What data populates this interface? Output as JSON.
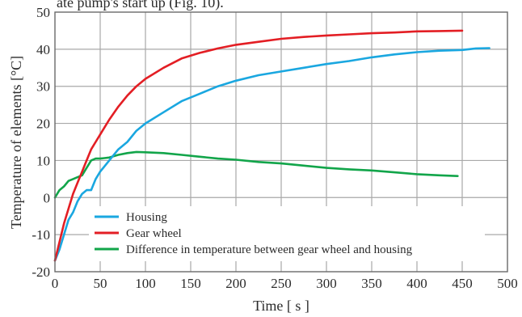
{
  "page_header": {
    "clipped_text": "ate pump's start up (Fig. 10)."
  },
  "chart_data": {
    "type": "line",
    "title": "",
    "xlabel": "Time [ s ]",
    "ylabel": "Temperature of elements [°C]",
    "xlim": [
      0,
      500
    ],
    "ylim": [
      -20,
      50
    ],
    "x_ticks": [
      0,
      50,
      100,
      150,
      200,
      250,
      300,
      350,
      400,
      450,
      500
    ],
    "y_ticks": [
      -20,
      -10,
      0,
      10,
      20,
      30,
      40,
      50
    ],
    "x_tick_labels": [
      "0",
      "50",
      "100",
      "150",
      "200",
      "250",
      "300",
      "350",
      "400",
      "450",
      "500"
    ],
    "y_tick_labels": [
      "-20",
      "-10",
      "0",
      "10",
      "20",
      "30",
      "40",
      "50"
    ],
    "grid": true,
    "legend_position": "lower-left",
    "series": [
      {
        "name": "Housing",
        "color": "#1aa7e0",
        "x": [
          0,
          5,
          10,
          15,
          20,
          25,
          30,
          35,
          40,
          45,
          50,
          60,
          70,
          80,
          90,
          100,
          120,
          140,
          160,
          180,
          200,
          225,
          250,
          275,
          300,
          325,
          350,
          375,
          400,
          425,
          450,
          465,
          480
        ],
        "y": [
          -17,
          -14,
          -10,
          -6,
          -4,
          -1,
          1,
          2,
          2,
          5,
          7,
          10,
          13,
          15,
          18,
          20,
          23,
          26,
          28,
          30,
          31.5,
          33,
          34,
          35,
          36,
          36.8,
          37.8,
          38.6,
          39.2,
          39.6,
          39.8,
          40.2,
          40.3
        ]
      },
      {
        "name": "Gear wheel",
        "color": "#e31e24",
        "x": [
          0,
          5,
          10,
          15,
          20,
          25,
          30,
          35,
          40,
          45,
          50,
          60,
          70,
          80,
          90,
          100,
          120,
          140,
          160,
          180,
          200,
          225,
          250,
          275,
          300,
          325,
          350,
          375,
          400,
          425,
          450
        ],
        "y": [
          -17,
          -12,
          -7,
          -3,
          1,
          4,
          7,
          10,
          13,
          15,
          17,
          21,
          24.5,
          27.5,
          30,
          32,
          35,
          37.5,
          39,
          40.2,
          41.2,
          42,
          42.8,
          43.3,
          43.7,
          44,
          44.3,
          44.5,
          44.8,
          44.9,
          45
        ]
      },
      {
        "name": "Difference in temperature between gear wheel and housing",
        "color": "#12a54a",
        "x": [
          0,
          5,
          10,
          15,
          20,
          25,
          30,
          35,
          40,
          45,
          50,
          60,
          70,
          80,
          90,
          100,
          120,
          140,
          160,
          180,
          200,
          225,
          250,
          275,
          300,
          325,
          350,
          375,
          400,
          425,
          445
        ],
        "y": [
          0,
          2,
          3,
          4.5,
          5,
          5.5,
          6,
          8,
          10,
          10.5,
          10.5,
          10.8,
          11.5,
          12,
          12.3,
          12.2,
          12,
          11.5,
          11,
          10.5,
          10.2,
          9.6,
          9.2,
          8.6,
          8,
          7.6,
          7.3,
          6.8,
          6.3,
          6,
          5.8
        ]
      }
    ]
  },
  "colors": {
    "background": "#ffffff",
    "plot_background": "#ffffff",
    "grid": "#a8a8a8",
    "axis": "#6a6a6a",
    "text": "#2b2b2b"
  }
}
